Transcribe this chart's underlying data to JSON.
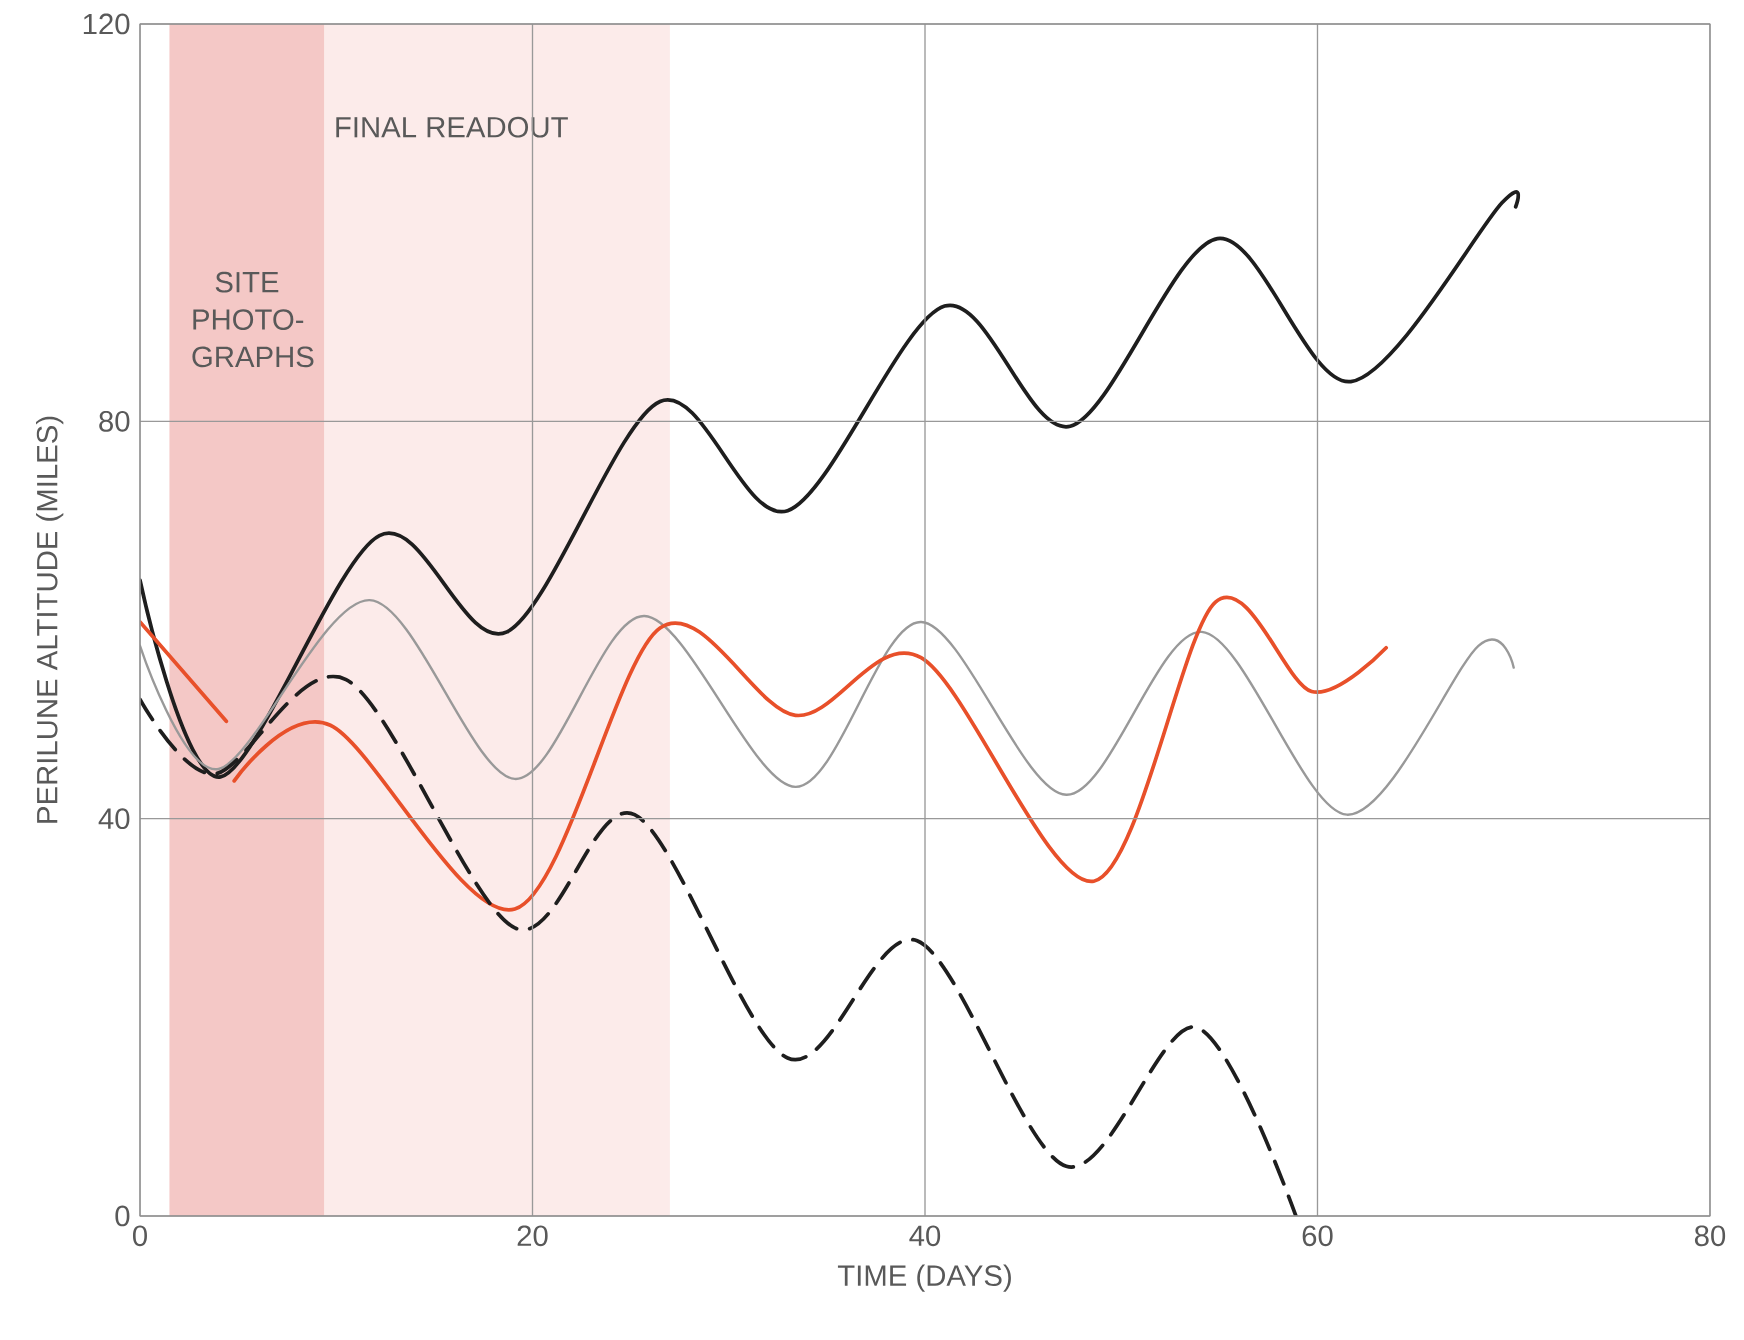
{
  "chart_data": {
    "type": "line",
    "xlabel": "TIME (DAYS)",
    "ylabel": "PERILUNE ALTITUDE (MILES)",
    "xlim": [
      0,
      80
    ],
    "ylim": [
      0,
      120
    ],
    "xticks": [
      0,
      20,
      40,
      60,
      80
    ],
    "yticks": [
      0,
      40,
      80,
      120
    ],
    "grid": true,
    "bands": [
      {
        "axis": "x",
        "from": 1.5,
        "to": 9.4,
        "label": "SITE PHOTO-GRAPHS",
        "color": "#f4c8c6"
      },
      {
        "axis": "x",
        "from": 9.4,
        "to": 27.0,
        "label": "FINAL READOUT",
        "color": "#fcebea"
      }
    ],
    "series": [
      {
        "color": "#1e1e1e",
        "x": [
          0,
          4.1,
          12.2,
          18.7,
          26.5,
          33,
          41,
          47.4,
          54.9,
          61.7,
          69.4,
          70.1
        ],
        "values": [
          64,
          44.2,
          68.5,
          58.8,
          82,
          71,
          91.6,
          79.5,
          98.4,
          84,
          102,
          101.6
        ]
      },
      {
        "color": "#999999",
        "x": [
          0,
          4,
          11.7,
          19.1,
          25.7,
          33.4,
          39.8,
          47.2,
          54.1,
          61.5,
          68.2,
          70
        ],
        "values": [
          57.4,
          45,
          62,
          44,
          60.4,
          43.2,
          59.8,
          42.4,
          58.8,
          40.4,
          57.4,
          55.2
        ]
      },
      {
        "color": "#e8502a",
        "x": [
          0,
          4.4,
          4.6,
          4.8,
          9.7,
          19.1,
          26.5,
          33.4,
          39.8,
          48.6,
          54.8,
          59.7,
          63.5
        ],
        "values": [
          59.8,
          49.8,
          null,
          43.8,
          49.4,
          30.9,
          59.2,
          50.4,
          56.2,
          33.7,
          61.8,
          52.8,
          57.2
        ]
      },
      {
        "color": "#1e1e1e",
        "line_style": "dashed",
        "x": [
          0,
          3.8,
          10.5,
          19.1,
          25.2,
          33,
          39.6,
          47.2,
          53.8,
          58.9
        ],
        "values": [
          52,
          44.5,
          54,
          29,
          40.4,
          15.9,
          27.7,
          5,
          19,
          0
        ]
      }
    ]
  }
}
